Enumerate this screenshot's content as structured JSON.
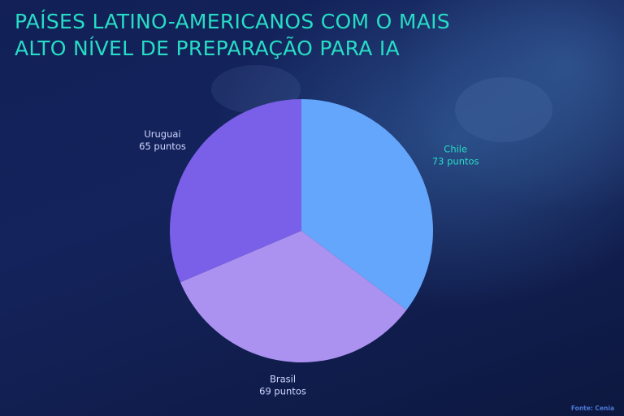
{
  "title_lines": [
    "PAÍSES LATINO-AMERICANOS COM O MAIS",
    "ALTO NÍVEL DE PREPARAÇÃO PARA IA"
  ],
  "source": "Fonte: Cenia",
  "colors": {
    "title": "#27dcc4",
    "chile_label": "#27dcc4",
    "other_labels": "#cfd6ff"
  },
  "chart_data": {
    "type": "pie",
    "title": "PAÍSES LATINO-AMERICANOS COM O MAIS ALTO NÍVEL DE PREPARAÇÃO PARA IA",
    "start_angle_deg": 0,
    "direction": "clockwise",
    "slices": [
      {
        "name": "Chile",
        "value": 73,
        "value_label": "73 puntos",
        "color": "#63a6fb"
      },
      {
        "name": "Brasil",
        "value": 69,
        "value_label": "69 puntos",
        "color": "#ab92f0"
      },
      {
        "name": "Uruguai",
        "value": 65,
        "value_label": "65 puntos",
        "color": "#7a5fe8"
      }
    ]
  }
}
